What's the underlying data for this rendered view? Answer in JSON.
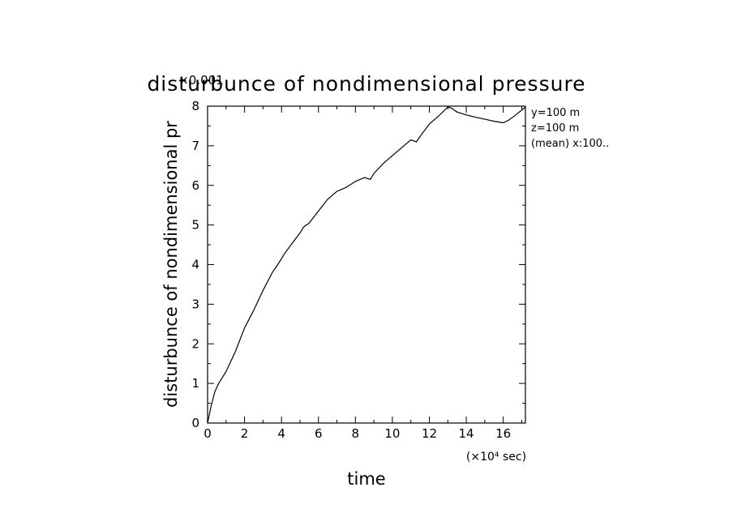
{
  "chart_data": {
    "type": "line",
    "title": "disturbunce of nondimensional pressure",
    "xlabel": "time",
    "ylabel": "disturbunce of nondimensional pr",
    "x_multiplier": "(×10⁴ sec)",
    "y_multiplier": "×0.001",
    "xlim": [
      0,
      17.2
    ],
    "ylim": [
      0,
      8
    ],
    "x_ticks": [
      0,
      2,
      4,
      6,
      8,
      10,
      12,
      14,
      16
    ],
    "x_tick_labels": [
      "0",
      "2",
      "4",
      "6",
      "8",
      "10",
      "12",
      "14",
      "16"
    ],
    "y_ticks": [
      0,
      1,
      2,
      3,
      4,
      5,
      6,
      7,
      8
    ],
    "y_tick_labels": [
      "0",
      "1",
      "2",
      "3",
      "4",
      "5",
      "6",
      "7",
      "8"
    ],
    "annotations": [
      "y=100 m",
      "z=100 m",
      "(mean) x:100.."
    ],
    "grid": false,
    "series": [
      {
        "x": [
          0,
          0.2,
          0.4,
          0.6,
          0.8,
          1.0,
          1.5,
          2.0,
          2.5,
          3.0,
          3.5,
          3.8,
          4.2,
          4.6,
          5.0,
          5.2,
          5.5,
          6.0,
          6.5,
          7.0,
          7.5,
          8.0,
          8.5,
          8.8,
          9.0,
          9.5,
          10.0,
          10.5,
          11.0,
          11.3,
          11.6,
          12.0,
          12.5,
          13.0,
          13.2,
          13.5,
          14.0,
          14.5,
          15.0,
          15.5,
          16.0,
          16.3,
          16.6,
          17.0,
          17.2
        ],
        "y": [
          0,
          0.45,
          0.8,
          1.0,
          1.15,
          1.3,
          1.8,
          2.4,
          2.85,
          3.35,
          3.8,
          4.0,
          4.3,
          4.55,
          4.8,
          4.95,
          5.05,
          5.35,
          5.65,
          5.85,
          5.95,
          6.1,
          6.2,
          6.15,
          6.3,
          6.55,
          6.75,
          6.95,
          7.15,
          7.1,
          7.3,
          7.55,
          7.75,
          7.98,
          7.95,
          7.85,
          7.78,
          7.72,
          7.67,
          7.62,
          7.58,
          7.65,
          7.75,
          7.9,
          7.98
        ]
      }
    ]
  }
}
